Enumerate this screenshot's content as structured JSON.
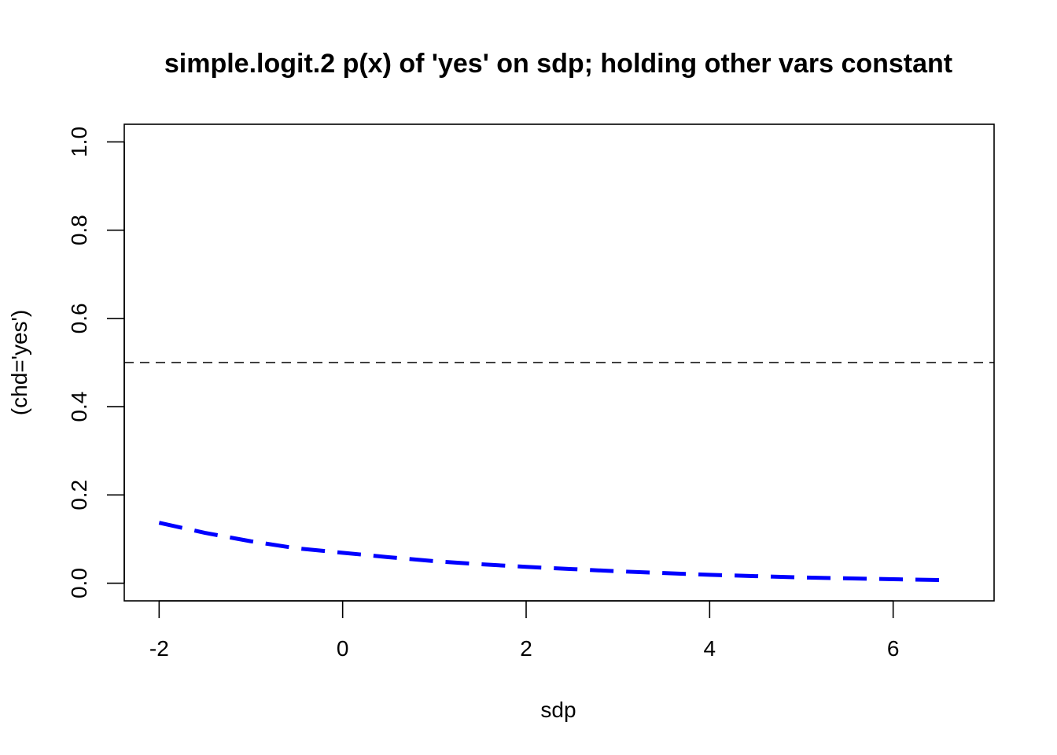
{
  "chart_data": {
    "type": "line",
    "title": "simple.logit.2 p(x) of 'yes' on sdp; holding other vars constant",
    "xlabel": "sdp",
    "ylabel": "(chd='yes')",
    "xlim": [
      -2.38,
      7.1
    ],
    "ylim": [
      -0.04,
      1.04
    ],
    "x_ticks": [
      -2,
      0,
      2,
      4,
      6
    ],
    "x_tick_labels": [
      "-2",
      "0",
      "2",
      "4",
      "6"
    ],
    "y_ticks": [
      0.0,
      0.2,
      0.4,
      0.6,
      0.8,
      1.0
    ],
    "y_tick_labels": [
      "0.0",
      "0.2",
      "0.4",
      "0.6",
      "0.8",
      "1.0"
    ],
    "grid": false,
    "series": [
      {
        "color": "#0000ff",
        "line_style": "dashed",
        "x": [
          -2.0,
          -1.5,
          -1.0,
          -0.5,
          0.0,
          0.5,
          1.0,
          1.5,
          2.0,
          2.5,
          3.0,
          3.5,
          4.0,
          4.5,
          5.0,
          5.5,
          6.0,
          6.6
        ],
        "y": [
          0.137,
          0.114,
          0.095,
          0.079,
          0.069,
          0.059,
          0.05,
          0.043,
          0.037,
          0.032,
          0.027,
          0.023,
          0.019,
          0.016,
          0.013,
          0.011,
          0.009,
          0.007
        ]
      }
    ],
    "reference_lines": [
      {
        "orientation": "horizontal",
        "y": 0.5,
        "color": "#000000",
        "line_style": "dashed"
      }
    ]
  }
}
